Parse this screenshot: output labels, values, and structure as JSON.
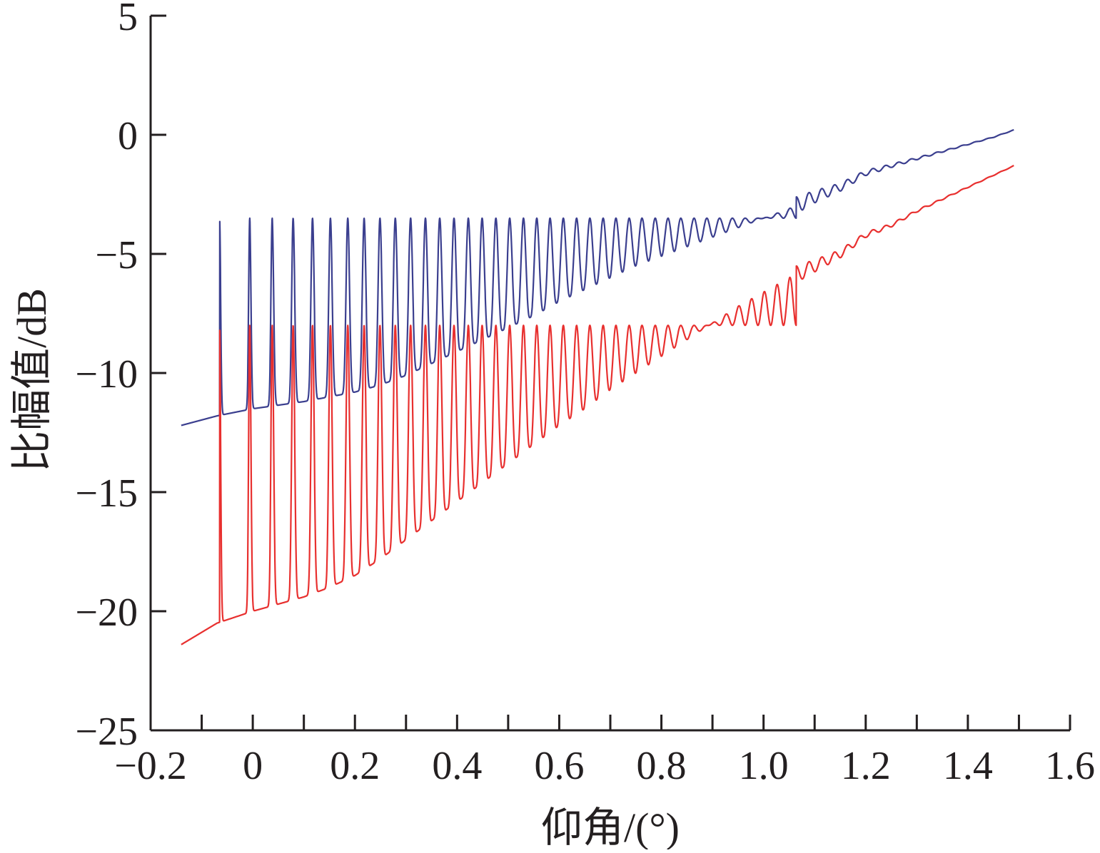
{
  "chart_data": {
    "type": "line",
    "title": "",
    "xlabel": "仰角/(°)",
    "ylabel": "比幅值/dB",
    "xlim": [
      -0.2,
      1.6
    ],
    "ylim": [
      -25,
      5
    ],
    "xticks": [
      -0.2,
      0,
      0.2,
      0.4,
      0.6,
      0.8,
      1.0,
      1.2,
      1.4,
      1.6
    ],
    "xtick_labels": [
      "−0.2",
      "0",
      "0.2",
      "0.4",
      "0.6",
      "0.8",
      "1.0",
      "1.2",
      "1.4",
      "1.6"
    ],
    "yticks": [
      -25,
      -20,
      -15,
      -10,
      -5,
      0,
      5
    ],
    "ytick_labels": [
      "−25",
      "−20",
      "−15",
      "−10",
      "−5",
      "0",
      "5"
    ],
    "grid": false,
    "legend": "none",
    "series": [
      {
        "color": "#3b3f8f",
        "peaks_x": [
          -0.065,
          -0.006,
          0.038,
          0.079,
          0.117,
          0.152,
          0.186,
          0.218,
          0.249,
          0.279,
          0.309,
          0.338,
          0.366,
          0.394,
          0.422,
          0.449,
          0.476,
          0.503,
          0.53,
          0.556,
          0.582,
          0.608,
          0.634,
          0.66,
          0.686,
          0.711,
          0.737,
          0.762,
          0.788,
          0.813,
          0.838,
          0.864,
          0.889,
          0.914,
          0.939,
          0.964,
          0.989,
          1.014,
          1.039,
          1.064
        ],
        "peak_value": -3.5,
        "base_points": [
          [
            -0.14,
            -12.2
          ],
          [
            -0.07,
            -11.8
          ],
          [
            0.0,
            -11.5
          ],
          [
            0.05,
            -11.35
          ],
          [
            0.1,
            -11.2
          ],
          [
            0.15,
            -11.0
          ],
          [
            0.2,
            -10.8
          ],
          [
            0.25,
            -10.5
          ],
          [
            0.3,
            -10.1
          ],
          [
            0.35,
            -9.6
          ],
          [
            0.4,
            -9.1
          ],
          [
            0.45,
            -8.6
          ],
          [
            0.5,
            -8.1
          ],
          [
            0.55,
            -7.6
          ],
          [
            0.6,
            -7.0
          ],
          [
            0.65,
            -6.5
          ],
          [
            0.7,
            -6.0
          ],
          [
            0.75,
            -5.5
          ],
          [
            0.8,
            -5.1
          ],
          [
            0.85,
            -4.7
          ],
          [
            0.9,
            -4.3
          ],
          [
            0.95,
            -3.9
          ],
          [
            1.0,
            -3.5
          ],
          [
            1.05,
            -3.1
          ],
          [
            1.1,
            -2.6
          ],
          [
            1.15,
            -2.2
          ],
          [
            1.2,
            -1.6
          ],
          [
            1.25,
            -1.3
          ],
          [
            1.3,
            -1.0
          ],
          [
            1.35,
            -0.7
          ],
          [
            1.4,
            -0.4
          ],
          [
            1.45,
            -0.1
          ],
          [
            1.49,
            0.2
          ]
        ]
      },
      {
        "color": "#e8302f",
        "peaks_x": [
          -0.065,
          -0.006,
          0.038,
          0.079,
          0.117,
          0.152,
          0.186,
          0.218,
          0.249,
          0.279,
          0.309,
          0.338,
          0.366,
          0.394,
          0.422,
          0.449,
          0.476,
          0.503,
          0.53,
          0.556,
          0.582,
          0.608,
          0.634,
          0.66,
          0.686,
          0.711,
          0.737,
          0.762,
          0.788,
          0.813,
          0.838,
          0.864,
          0.889,
          0.914,
          0.939,
          0.964,
          0.989,
          1.014,
          1.039,
          1.064
        ],
        "peak_value": -8.0,
        "base_points": [
          [
            -0.14,
            -21.4
          ],
          [
            -0.07,
            -20.5
          ],
          [
            0.0,
            -20.0
          ],
          [
            0.05,
            -19.7
          ],
          [
            0.1,
            -19.4
          ],
          [
            0.15,
            -19.0
          ],
          [
            0.2,
            -18.5
          ],
          [
            0.25,
            -17.8
          ],
          [
            0.3,
            -17.0
          ],
          [
            0.35,
            -16.2
          ],
          [
            0.4,
            -15.4
          ],
          [
            0.45,
            -14.6
          ],
          [
            0.5,
            -13.8
          ],
          [
            0.55,
            -13.0
          ],
          [
            0.6,
            -12.2
          ],
          [
            0.65,
            -11.5
          ],
          [
            0.7,
            -10.7
          ],
          [
            0.75,
            -10.0
          ],
          [
            0.8,
            -9.3
          ],
          [
            0.85,
            -8.6
          ],
          [
            0.9,
            -7.9
          ],
          [
            0.95,
            -7.2
          ],
          [
            1.0,
            -6.6
          ],
          [
            1.05,
            -6.0
          ],
          [
            1.1,
            -5.5
          ],
          [
            1.15,
            -5.0
          ],
          [
            1.2,
            -4.2
          ],
          [
            1.25,
            -3.8
          ],
          [
            1.3,
            -3.2
          ],
          [
            1.35,
            -2.7
          ],
          [
            1.4,
            -2.2
          ],
          [
            1.45,
            -1.7
          ],
          [
            1.49,
            -1.3
          ]
        ]
      }
    ]
  }
}
